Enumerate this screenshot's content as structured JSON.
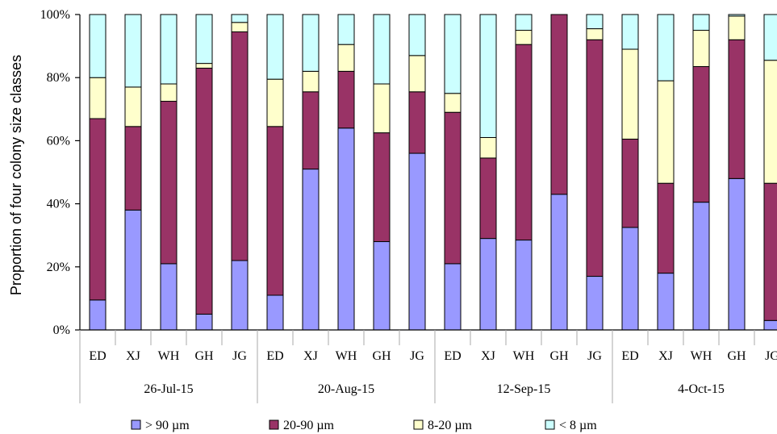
{
  "chart_data": {
    "type": "bar",
    "stacked": true,
    "normalized": true,
    "ylabel": "Proportion of four colony size classes",
    "ylim": [
      0,
      100
    ],
    "yticks": [
      "0%",
      "20%",
      "40%",
      "60%",
      "80%",
      "100%"
    ],
    "groups": [
      {
        "label": "26-Jul-15",
        "categories": [
          "ED",
          "XJ",
          "WH",
          "GH",
          "JG"
        ]
      },
      {
        "label": "20-Aug-15",
        "categories": [
          "ED",
          "XJ",
          "WH",
          "GH",
          "JG"
        ]
      },
      {
        "label": "12-Sep-15",
        "categories": [
          "ED",
          "XJ",
          "WH",
          "GH",
          "JG"
        ]
      },
      {
        "label": "4-Oct-15",
        "categories": [
          "ED",
          "XJ",
          "WH",
          "GH",
          "JG"
        ]
      }
    ],
    "series": [
      {
        "name": "> 90 µm",
        "color": "#9999ff",
        "values": [
          9.5,
          38,
          21,
          5,
          22,
          11,
          51,
          64,
          28,
          56,
          21,
          29,
          28.5,
          43,
          17,
          32.5,
          18,
          40.5,
          48,
          3
        ]
      },
      {
        "name": "20-90 µm",
        "color": "#993366",
        "values": [
          57.5,
          26.5,
          51.5,
          78,
          72.5,
          53.5,
          24.5,
          18,
          34.5,
          19.5,
          48,
          25.5,
          62,
          57,
          75,
          28,
          28.5,
          43,
          44,
          43.5
        ]
      },
      {
        "name": "8-20 µm",
        "color": "#ffffcc",
        "values": [
          13,
          12.5,
          5.5,
          1.5,
          3,
          15,
          6.5,
          8.5,
          15.5,
          11.5,
          6,
          6.5,
          4.5,
          0,
          3.5,
          28.5,
          32.5,
          11.5,
          7.5,
          39
        ]
      },
      {
        "name": "< 8 µm",
        "color": "#ccffff",
        "values": [
          20,
          23,
          22,
          15.5,
          2.5,
          20.5,
          18,
          9.5,
          22,
          13,
          25,
          39,
          5,
          0,
          4.5,
          11,
          21,
          5,
          0.5,
          14.5
        ]
      }
    ],
    "grid": false,
    "legend_position": "bottom"
  }
}
